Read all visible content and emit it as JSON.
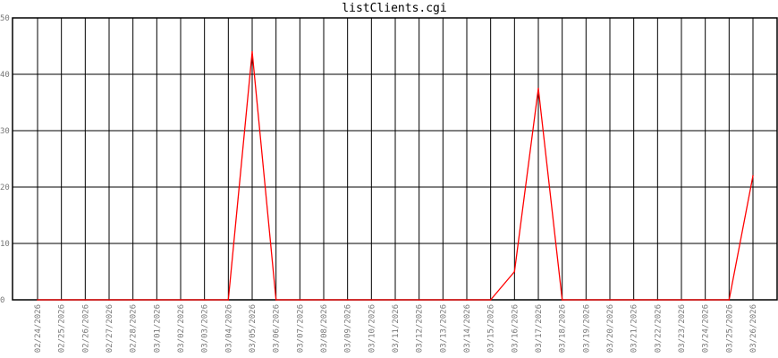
{
  "chart_data": {
    "type": "line",
    "title": "listClients.cgi",
    "xlabel": "",
    "ylabel": "",
    "ylim": [
      0,
      50
    ],
    "yticks": [
      0,
      10,
      20,
      30,
      40,
      50
    ],
    "grid": true,
    "categories": [
      "02/24/2026",
      "02/25/2026",
      "02/26/2026",
      "02/27/2026",
      "02/28/2026",
      "03/01/2026",
      "03/02/2026",
      "03/03/2026",
      "03/04/2026",
      "03/05/2026",
      "03/06/2026",
      "03/07/2026",
      "03/08/2026",
      "03/09/2026",
      "03/10/2026",
      "03/11/2026",
      "03/12/2026",
      "03/13/2026",
      "03/14/2026",
      "03/15/2026",
      "03/16/2026",
      "03/17/2026",
      "03/18/2026",
      "03/19/2026",
      "03/20/2026",
      "03/21/2026",
      "03/22/2026",
      "03/23/2026",
      "03/24/2026",
      "03/25/2026",
      "03/26/2026"
    ],
    "series": [
      {
        "values": [
          0,
          0,
          0,
          0,
          0,
          0,
          0,
          0,
          0,
          44,
          0,
          0,
          0,
          0,
          0,
          0,
          0,
          0,
          0,
          0,
          5,
          37.5,
          0,
          0,
          0,
          0,
          0,
          0,
          0,
          0,
          22
        ],
        "color": "#ff0000"
      }
    ]
  }
}
